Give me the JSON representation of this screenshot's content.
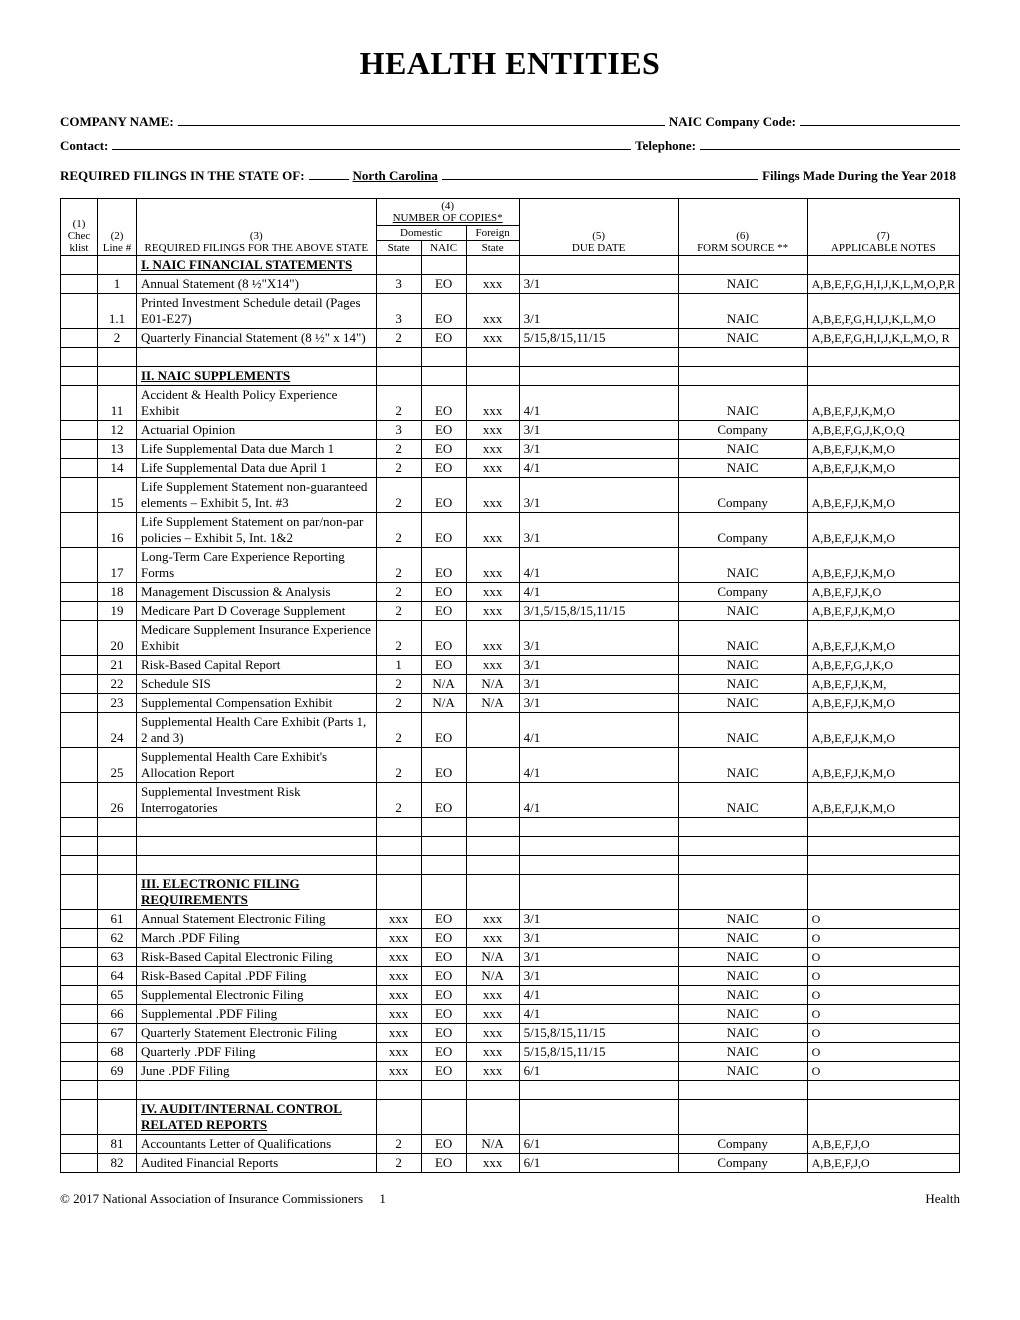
{
  "title": "HEALTH ENTITIES",
  "header": {
    "company_name_label": "COMPANY NAME:",
    "naic_code_label": "NAIC Company Code:",
    "contact_label": "Contact:",
    "telephone_label": "Telephone:",
    "required_filings_label": "REQUIRED FILINGS IN THE STATE OF:",
    "state_name": "North Carolina",
    "year_label": "Filings Made During the Year 2018"
  },
  "columns": {
    "c1": "(1)",
    "c2": "(2)",
    "c3": "(3)",
    "c4": "(4)",
    "c5": "(5)",
    "c6": "(6)",
    "c7": "(7)",
    "chk": "Chec klist",
    "line": "Line #",
    "desc": "REQUIRED FILINGS FOR THE ABOVE STATE",
    "copies": "NUMBER OF COPIES*",
    "domestic": "Domestic",
    "foreign": "Foreign",
    "due": "DUE DATE",
    "source": "FORM SOURCE **",
    "notes": "APPLICABLE NOTES",
    "state": "State",
    "naic": "NAIC",
    "fstate": "State"
  },
  "sections": [
    {
      "title": "I.  NAIC FINANCIAL STATEMENTS",
      "rows": [
        {
          "line": "1",
          "desc": "Annual Statement (8 ½\"X14\")",
          "state": "3",
          "naic": "EO",
          "fstate": "xxx",
          "due": "3/1",
          "src": "NAIC",
          "notes": "A,B,E,F,G,H,I,J,K,L,M,O,P,R"
        },
        {
          "line": "1.1",
          "desc": "Printed Investment Schedule detail (Pages E01-E27)",
          "state": "3",
          "naic": "EO",
          "fstate": "xxx",
          "due": "3/1",
          "src": "NAIC",
          "notes": "A,B,E,F,G,H,I,J,K,L,M,O"
        },
        {
          "line": "2",
          "desc": "Quarterly Financial Statement (8 ½\" x 14\")",
          "state": "2",
          "naic": "EO",
          "fstate": "xxx",
          "due": "5/15,8/15,11/15",
          "src": "NAIC",
          "notes": "A,B,E,F,G,H,I,J,K,L,M,O, R"
        }
      ],
      "trailing_blank": true
    },
    {
      "title": "II.  NAIC SUPPLEMENTS",
      "rows": [
        {
          "line": "11",
          "desc": "Accident & Health Policy Experience Exhibit",
          "state": "2",
          "naic": "EO",
          "fstate": "xxx",
          "due": "4/1",
          "src": "NAIC",
          "notes": "A,B,E,F,J,K,M,O"
        },
        {
          "line": "12",
          "desc": "Actuarial Opinion",
          "state": "3",
          "naic": "EO",
          "fstate": "xxx",
          "due": "3/1",
          "src": "Company",
          "notes": "A,B,E,F,G,J,K,O,Q"
        },
        {
          "line": "13",
          "desc": "Life Supplemental Data due March 1",
          "state": "2",
          "naic": "EO",
          "fstate": "xxx",
          "due": "3/1",
          "src": "NAIC",
          "notes": "A,B,E,F,J,K,M,O"
        },
        {
          "line": "14",
          "desc": "Life Supplemental Data due April 1",
          "state": "2",
          "naic": "EO",
          "fstate": "xxx",
          "due": "4/1",
          "src": "NAIC",
          "notes": "A,B,E,F,J,K,M,O"
        },
        {
          "line": "15",
          "desc": "Life Supplement Statement non-guaranteed elements – Exhibit 5, Int. #3",
          "state": "2",
          "naic": "EO",
          "fstate": "xxx",
          "due": "3/1",
          "src": "Company",
          "notes": "A,B,E,F,J,K,M,O"
        },
        {
          "line": "16",
          "desc": "Life Supplement Statement on par/non-par policies – Exhibit 5, Int. 1&2",
          "state": "2",
          "naic": "EO",
          "fstate": "xxx",
          "due": "3/1",
          "src": "Company",
          "notes": "A,B,E,F,J,K,M,O"
        },
        {
          "line": "17",
          "desc": "Long-Term Care Experience Reporting Forms",
          "state": "2",
          "naic": "EO",
          "fstate": "xxx",
          "due": "4/1",
          "src": "NAIC",
          "notes": "A,B,E,F,J,K,M,O"
        },
        {
          "line": "18",
          "desc": "Management Discussion & Analysis",
          "state": "2",
          "naic": "EO",
          "fstate": "xxx",
          "due": "4/1",
          "src": "Company",
          "notes": "A,B,E,F,J,K,O"
        },
        {
          "line": "19",
          "desc": "Medicare Part D Coverage Supplement",
          "state": "2",
          "naic": "EO",
          "fstate": "xxx",
          "due": "3/1,5/15,8/15,11/15",
          "src": "NAIC",
          "notes": "A,B,E,F,J,K,M,O"
        },
        {
          "line": "20",
          "desc": "Medicare Supplement Insurance Experience Exhibit",
          "state": "2",
          "naic": "EO",
          "fstate": "xxx",
          "due": "3/1",
          "src": "NAIC",
          "notes": "A,B,E,F,J,K,M,O"
        },
        {
          "line": "21",
          "desc": "Risk-Based Capital Report",
          "state": "1",
          "naic": "EO",
          "fstate": "xxx",
          "due": "3/1",
          "src": "NAIC",
          "notes": "A,B,E,F,G,J,K,O"
        },
        {
          "line": "22",
          "desc": "Schedule SIS",
          "state": "2",
          "naic": "N/A",
          "fstate": "N/A",
          "due": "3/1",
          "src": "NAIC",
          "notes": "A,B,E,F,J,K,M,"
        },
        {
          "line": "23",
          "desc": "Supplemental Compensation Exhibit",
          "state": "2",
          "naic": "N/A",
          "fstate": "N/A",
          "due": "3/1",
          "src": "NAIC",
          "notes": "A,B,E,F,J,K,M,O"
        },
        {
          "line": "24",
          "desc": "Supplemental Health Care Exhibit (Parts 1, 2 and 3)",
          "state": "2",
          "naic": "EO",
          "fstate": "",
          "due": "4/1",
          "src": "NAIC",
          "notes": "A,B,E,F,J,K,M,O"
        },
        {
          "line": "25",
          "desc": "Supplemental Health Care Exhibit's Allocation Report",
          "state": "2",
          "naic": "EO",
          "fstate": "",
          "due": "4/1",
          "src": "NAIC",
          "notes": "A,B,E,F,J,K,M,O"
        },
        {
          "line": "26",
          "desc": "Supplemental Investment Risk Interrogatories",
          "state": "2",
          "naic": "EO",
          "fstate": "",
          "due": "4/1",
          "src": "NAIC",
          "notes": "A,B,E,F,J,K,M,O"
        }
      ],
      "trailing_blank_count": 3
    },
    {
      "title": "III. ELECTRONIC FILING REQUIREMENTS",
      "rows": [
        {
          "line": "61",
          "desc": "Annual Statement Electronic Filing",
          "state": "xxx",
          "naic": "EO",
          "fstate": "xxx",
          "due": "3/1",
          "src": "NAIC",
          "notes": "O"
        },
        {
          "line": "62",
          "desc": "March .PDF Filing",
          "state": "xxx",
          "naic": "EO",
          "fstate": "xxx",
          "due": "3/1",
          "src": "NAIC",
          "notes": "O"
        },
        {
          "line": "63",
          "desc": "Risk-Based Capital Electronic Filing",
          "state": "xxx",
          "naic": "EO",
          "fstate": "N/A",
          "due": "3/1",
          "src": "NAIC",
          "notes": "O"
        },
        {
          "line": "64",
          "desc": "Risk-Based Capital .PDF Filing",
          "state": "xxx",
          "naic": "EO",
          "fstate": "N/A",
          "due": "3/1",
          "src": "NAIC",
          "notes": "O"
        },
        {
          "line": "65",
          "desc": "Supplemental Electronic Filing",
          "state": "xxx",
          "naic": "EO",
          "fstate": "xxx",
          "due": "4/1",
          "src": "NAIC",
          "notes": "O"
        },
        {
          "line": "66",
          "desc": "Supplemental  .PDF Filing",
          "state": "xxx",
          "naic": "EO",
          "fstate": "xxx",
          "due": "4/1",
          "src": "NAIC",
          "notes": "O"
        },
        {
          "line": "67",
          "desc": "Quarterly Statement Electronic Filing",
          "state": "xxx",
          "naic": "EO",
          "fstate": "xxx",
          "due": "5/15,8/15,11/15",
          "src": "NAIC",
          "notes": "O"
        },
        {
          "line": "68",
          "desc": "Quarterly .PDF  Filing",
          "state": "xxx",
          "naic": "EO",
          "fstate": "xxx",
          "due": "5/15,8/15,11/15",
          "src": "NAIC",
          "notes": "O"
        },
        {
          "line": "69",
          "desc": "June .PDF Filing",
          "state": "xxx",
          "naic": "EO",
          "fstate": "xxx",
          "due": "6/1",
          "src": "NAIC",
          "notes": "O"
        }
      ],
      "trailing_blank": true
    },
    {
      "title": "IV. AUDIT/INTERNAL CONTROL RELATED REPORTS",
      "rows": [
        {
          "line": "81",
          "desc": "Accountants Letter of Qualifications",
          "state": "2",
          "naic": "EO",
          "fstate": "N/A",
          "due": "6/1",
          "src": "Company",
          "notes": "A,B,E,F,J,O"
        },
        {
          "line": "82",
          "desc": "Audited Financial Reports",
          "state": "2",
          "naic": "EO",
          "fstate": "xxx",
          "due": "6/1",
          "src": "Company",
          "notes": "A,B,E,F,J,O"
        }
      ]
    }
  ],
  "footer": {
    "left": "© 2017 National Association of Insurance Commissioners",
    "page": "1",
    "right": "Health"
  }
}
